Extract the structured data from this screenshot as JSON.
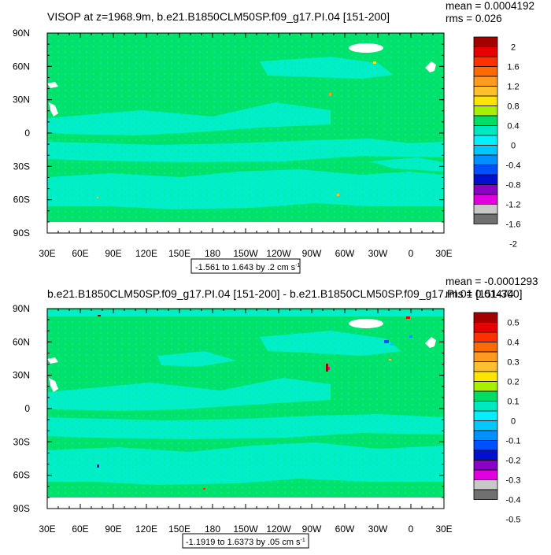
{
  "chart_data": [
    {
      "type": "heatmap",
      "title": "VISOP at z=1968.9m, b.e21.B1850CLM50SP.f09_g17.PI.04 [151-200]",
      "stats": {
        "mean": "mean = 0.0004192",
        "rms": "rms = 0.026"
      },
      "x_tick_labels": [
        "30E",
        "60E",
        "90E",
        "120E",
        "150E",
        "180",
        "150W",
        "120W",
        "90W",
        "60W",
        "30W",
        "0",
        "30E"
      ],
      "y_tick_labels": [
        "90N",
        "60N",
        "30N",
        "0",
        "30S",
        "60S",
        "90S"
      ],
      "xlim": [
        30,
        390
      ],
      "ylim": [
        -90,
        90
      ],
      "contour_info": "-1.561 to 1.643 by .2 cm s",
      "unit_superscript": "-1",
      "colorbar": {
        "labels": [
          "2",
          "1.6",
          "1.2",
          "0.8",
          "0.4",
          "0",
          "-0.4",
          "-0.8",
          "-1.2",
          "-1.6",
          "-2"
        ],
        "colors": [
          "#a50000",
          "#e60000",
          "#ff3000",
          "#ff6a00",
          "#ff9a20",
          "#ffc030",
          "#ffe400",
          "#a6f000",
          "#00dd66",
          "#00e8c0",
          "#00f0ff",
          "#00c8ff",
          "#0090ff",
          "#0050ff",
          "#0010d0",
          "#8a00c8",
          "#e000e0",
          "#c8c8c8",
          "#707070"
        ]
      }
    },
    {
      "type": "heatmap",
      "title": "b.e21.B1850CLM50SP.f09_g17.PI.04 [151-200] - b.e21.B1850CLM50SP.f09_g17.PI.01 [151-300]",
      "stats": {
        "mean": "mean = -0.0001293",
        "rms": "rms = 0.01474"
      },
      "x_tick_labels": [
        "30E",
        "60E",
        "90E",
        "120E",
        "150E",
        "180",
        "150W",
        "120W",
        "90W",
        "60W",
        "30W",
        "0",
        "30E"
      ],
      "y_tick_labels": [
        "90N",
        "60N",
        "30N",
        "0",
        "30S",
        "60S",
        "90S"
      ],
      "xlim": [
        30,
        390
      ],
      "ylim": [
        -90,
        90
      ],
      "contour_info": "-1.1919 to 1.6373 by .05 cm s",
      "unit_superscript": "-1",
      "colorbar": {
        "labels": [
          "0.5",
          "0.4",
          "0.3",
          "0.2",
          "0.1",
          "0",
          "-0.1",
          "-0.2",
          "-0.3",
          "-0.4",
          "-0.5"
        ],
        "colors": [
          "#a50000",
          "#e60000",
          "#ff3000",
          "#ff6a00",
          "#ff9a20",
          "#ffc030",
          "#ffe400",
          "#a6f000",
          "#00dd66",
          "#00e8c0",
          "#00f0ff",
          "#00c8ff",
          "#0090ff",
          "#0050ff",
          "#0010d0",
          "#8a00c8",
          "#e000e0",
          "#c8c8c8",
          "#707070"
        ]
      }
    }
  ]
}
